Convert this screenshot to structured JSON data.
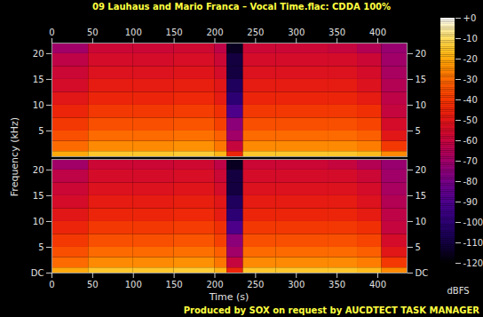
{
  "chart_data": {
    "type": "heatmap",
    "title": "09 Lauhaus and Mario Franca – Vocal Time.flac: CDDA 100%",
    "caption": "Produced by SOX on request by AUCDTECT TASK MANAGER",
    "x_label": "Time (s)",
    "y_label": "Frequency (kHz)",
    "xlim": [
      0,
      436
    ],
    "xticks": [
      0,
      50,
      100,
      150,
      200,
      250,
      300,
      350,
      400
    ],
    "ylim": [
      0,
      22.05
    ],
    "time_edges": [
      0,
      45,
      100,
      150,
      200,
      215,
      235,
      275,
      340,
      375,
      405,
      436
    ],
    "frequency_edges": [
      0,
      1,
      3,
      5,
      7.5,
      10,
      12.5,
      15,
      17.5,
      20,
      22.05
    ],
    "channels": [
      {
        "yticks": [
          5,
          10,
          15,
          20
        ],
        "values": [
          [
            -20,
            -30,
            -35,
            -40,
            -45,
            -50,
            -55,
            -58,
            -62,
            -70
          ],
          [
            -15,
            -25,
            -30,
            -35,
            -40,
            -45,
            -48,
            -52,
            -55,
            -58
          ],
          [
            -15,
            -25,
            -30,
            -35,
            -40,
            -45,
            -48,
            -52,
            -55,
            -58
          ],
          [
            -14,
            -24,
            -29,
            -34,
            -39,
            -44,
            -47,
            -51,
            -54,
            -57
          ],
          [
            -18,
            -28,
            -32,
            -38,
            -42,
            -48,
            -50,
            -55,
            -58,
            -62
          ],
          [
            -45,
            -60,
            -70,
            -75,
            -90,
            -100,
            -105,
            -110,
            -110,
            -115
          ],
          [
            -15,
            -25,
            -30,
            -35,
            -40,
            -45,
            -48,
            -52,
            -55,
            -58
          ],
          [
            -15,
            -25,
            -30,
            -35,
            -40,
            -45,
            -48,
            -52,
            -55,
            -58
          ],
          [
            -15,
            -25,
            -30,
            -35,
            -40,
            -45,
            -48,
            -52,
            -55,
            -60
          ],
          [
            -17,
            -27,
            -32,
            -37,
            -42,
            -48,
            -52,
            -55,
            -58,
            -65
          ],
          [
            -25,
            -40,
            -50,
            -55,
            -60,
            -62,
            -65,
            -68,
            -70,
            -72
          ]
        ]
      },
      {
        "yticks": [
          {
            "value": 0,
            "label": "DC"
          },
          5,
          10,
          15,
          20
        ],
        "values": [
          [
            -20,
            -30,
            -35,
            -40,
            -45,
            -50,
            -55,
            -58,
            -62,
            -70
          ],
          [
            -15,
            -25,
            -30,
            -35,
            -40,
            -45,
            -48,
            -52,
            -55,
            -58
          ],
          [
            -15,
            -25,
            -30,
            -35,
            -40,
            -45,
            -48,
            -52,
            -55,
            -58
          ],
          [
            -14,
            -24,
            -29,
            -34,
            -39,
            -44,
            -47,
            -51,
            -54,
            -57
          ],
          [
            -18,
            -28,
            -32,
            -38,
            -42,
            -48,
            -50,
            -55,
            -58,
            -62
          ],
          [
            -45,
            -60,
            -70,
            -75,
            -90,
            -100,
            -105,
            -110,
            -110,
            -115
          ],
          [
            -15,
            -25,
            -30,
            -35,
            -40,
            -45,
            -48,
            -52,
            -55,
            -58
          ],
          [
            -15,
            -25,
            -30,
            -35,
            -40,
            -45,
            -48,
            -52,
            -55,
            -58
          ],
          [
            -15,
            -25,
            -30,
            -35,
            -40,
            -45,
            -48,
            -52,
            -55,
            -60
          ],
          [
            -17,
            -27,
            -32,
            -37,
            -42,
            -48,
            -52,
            -55,
            -58,
            -65
          ],
          [
            -25,
            -40,
            -50,
            -55,
            -60,
            -62,
            -65,
            -68,
            -70,
            -72
          ]
        ]
      }
    ],
    "colorbar": {
      "label": "dBFS",
      "range": [
        -120,
        0
      ],
      "ticks": [
        {
          "value": 0,
          "label": "+0"
        },
        -10,
        -20,
        -30,
        -40,
        -50,
        -60,
        -70,
        -80,
        -90,
        -100,
        -110,
        -120
      ]
    }
  }
}
